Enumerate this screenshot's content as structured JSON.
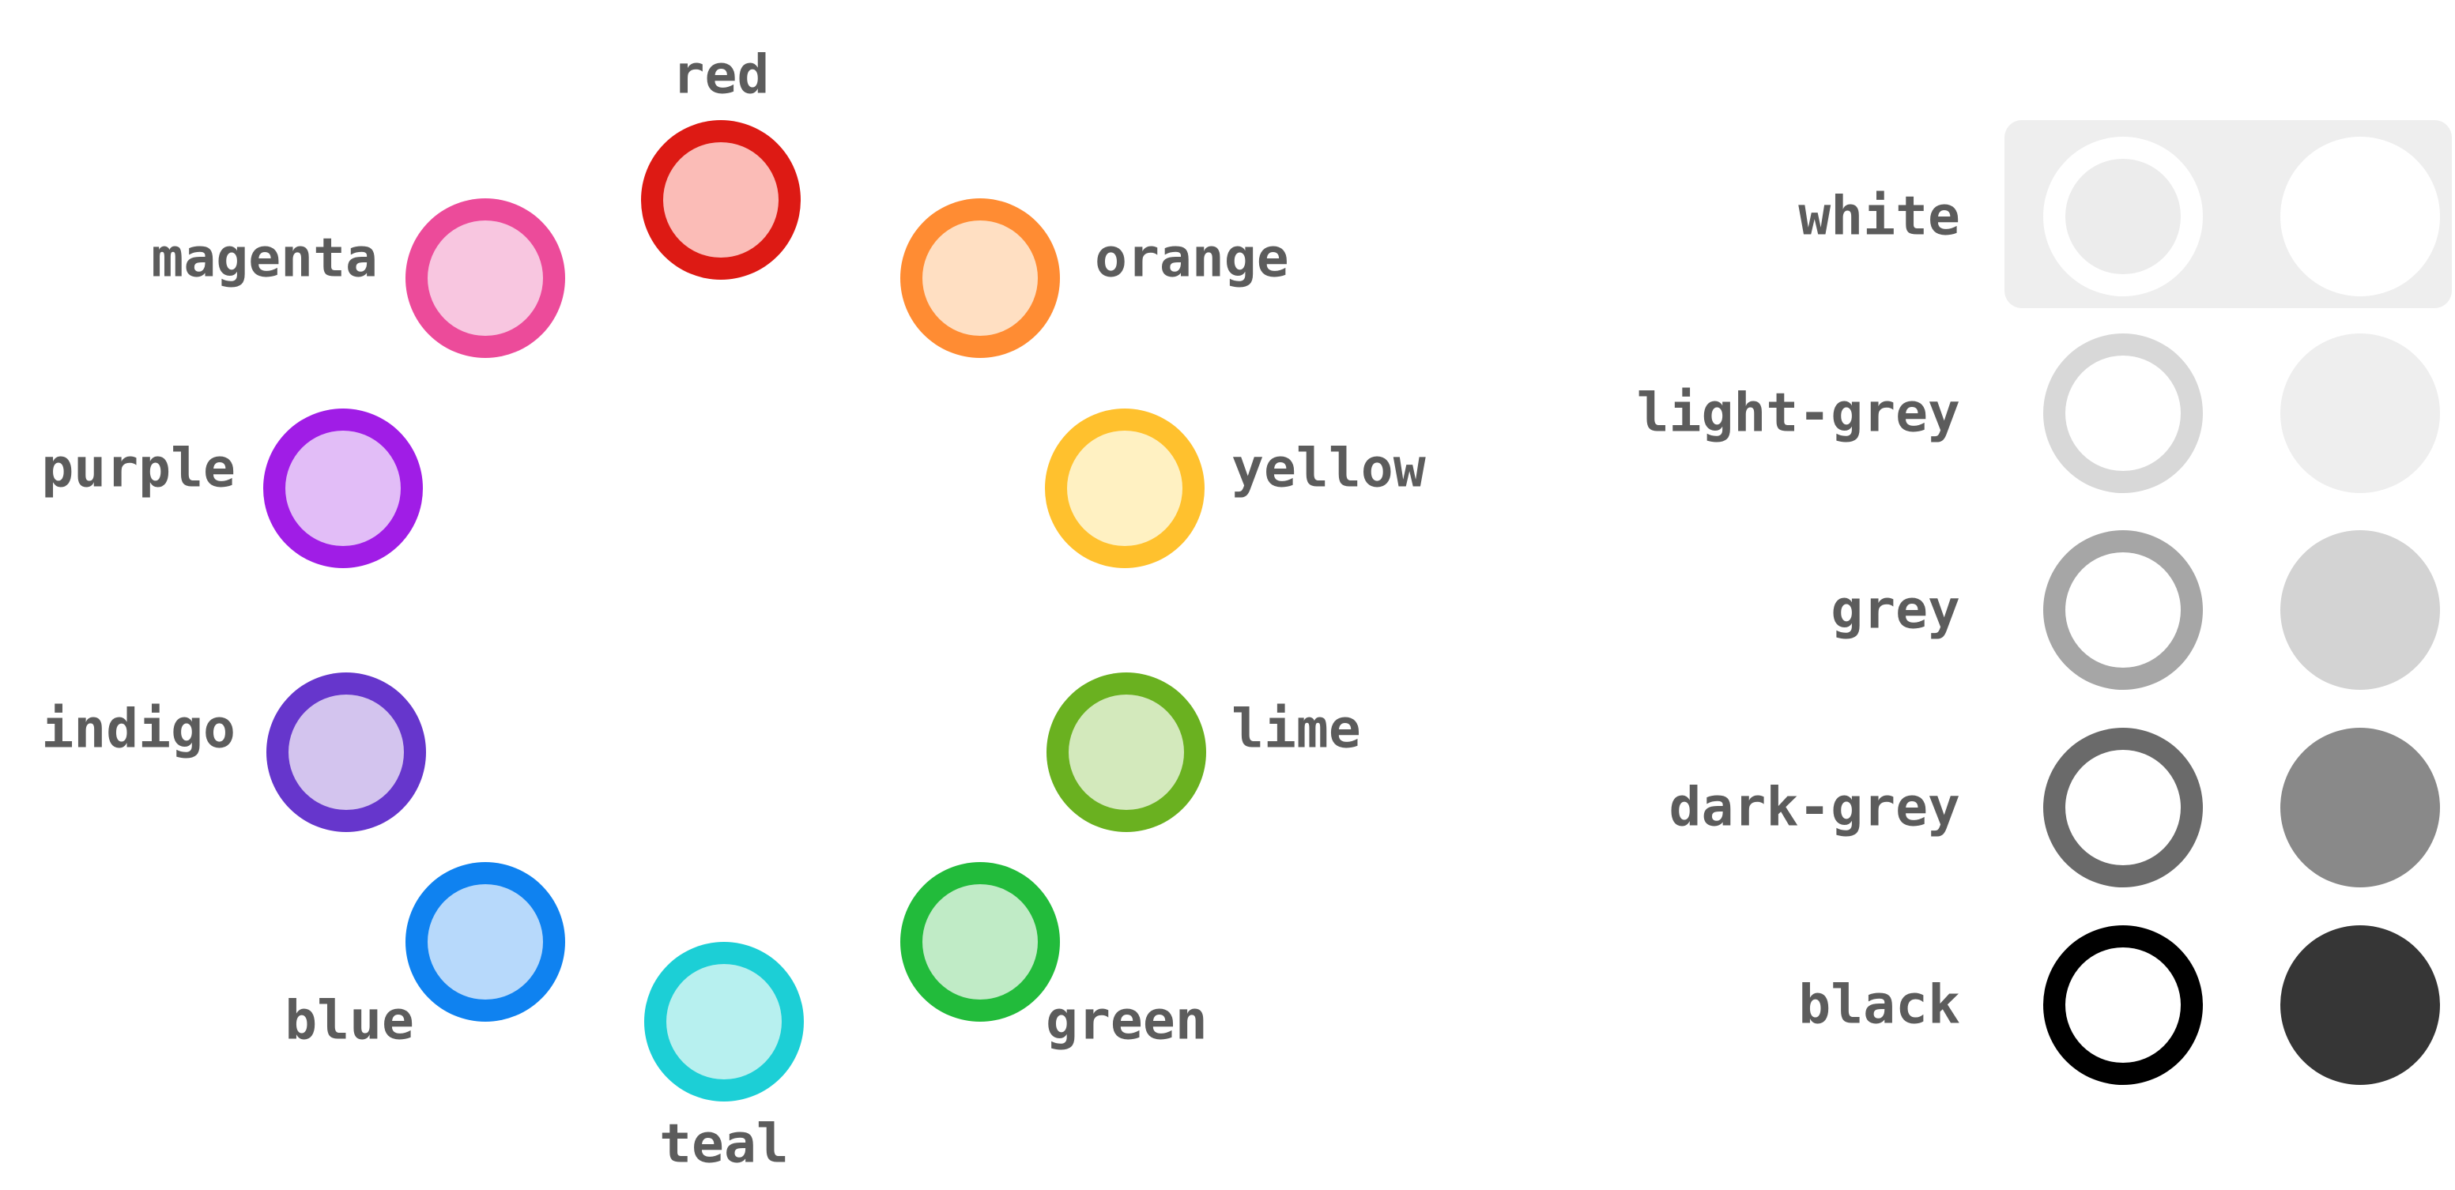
{
  "label_color": "#5c5c5c",
  "wheel": [
    {
      "name": "red",
      "stroke": "#dd1a14",
      "fill": "#fbbcb7"
    },
    {
      "name": "orange",
      "stroke": "#ff8c33",
      "fill": "#ffdfc2"
    },
    {
      "name": "yellow",
      "stroke": "#ffc12e",
      "fill": "#fff1c2"
    },
    {
      "name": "lime",
      "stroke": "#6ab120",
      "fill": "#d3e9bc"
    },
    {
      "name": "green",
      "stroke": "#22bb3b",
      "fill": "#c0ebc6"
    },
    {
      "name": "teal",
      "stroke": "#1ccfd6",
      "fill": "#b7f0ef"
    },
    {
      "name": "blue",
      "stroke": "#0f82f0",
      "fill": "#b7d9fb"
    },
    {
      "name": "indigo",
      "stroke": "#6636cc",
      "fill": "#d3c4ee"
    },
    {
      "name": "purple",
      "stroke": "#a01de6",
      "fill": "#e2bdf7"
    },
    {
      "name": "magenta",
      "stroke": "#ec4b9a",
      "fill": "#f8c6e0"
    }
  ],
  "greys": [
    {
      "name": "white",
      "ring": "#ffffff",
      "ring_inner": "#ececec",
      "solid": "#ffffff",
      "highlighted": true
    },
    {
      "name": "light-grey",
      "ring": "#d8d8d8",
      "ring_inner": "#ffffff",
      "solid": "#eeeeee",
      "highlighted": false
    },
    {
      "name": "grey",
      "ring": "#a6a6a6",
      "ring_inner": "#ffffff",
      "solid": "#d3d3d3",
      "highlighted": false
    },
    {
      "name": "dark-grey",
      "ring": "#6a6a6a",
      "ring_inner": "#ffffff",
      "solid": "#898989",
      "highlighted": false
    },
    {
      "name": "black",
      "ring": "#000000",
      "ring_inner": "#ffffff",
      "solid": "#363636",
      "highlighted": false
    }
  ],
  "highlight_background": "#eeeeee"
}
